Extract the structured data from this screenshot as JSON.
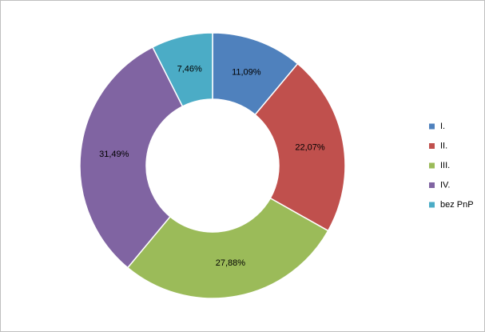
{
  "chart_data": {
    "type": "donut",
    "categories": [
      "I.",
      "II.",
      "III.",
      "IV.",
      "bez PnP"
    ],
    "values": [
      11.09,
      22.07,
      27.88,
      31.49,
      7.46
    ],
    "value_labels": [
      "11,09%",
      "22,07%",
      "27,88%",
      "31,49%",
      "7,46%"
    ],
    "colors": [
      "#4f81bd",
      "#c0504d",
      "#9bbb59",
      "#8064a2",
      "#4bacc6"
    ],
    "legend": "right"
  }
}
